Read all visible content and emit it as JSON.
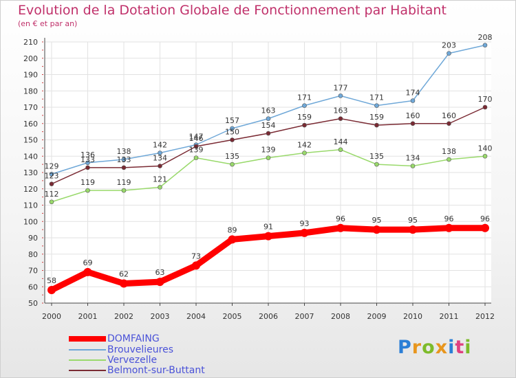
{
  "header": {
    "title": "Evolution de la Dotation Globale de Fonctionnement par Habitant",
    "subtitle": "(en € et par an)"
  },
  "logo": {
    "text": "Proxiti",
    "colors": [
      "#2b7fd6",
      "#e8961e",
      "#7dbb2a",
      "#e8961e",
      "#2b7fd6",
      "#e04080",
      "#7dbb2a"
    ]
  },
  "colors": {
    "grid": "#e2e2e2",
    "axis": "#444444",
    "tick_text": "#333333"
  },
  "chart_data": {
    "type": "line",
    "title": "Evolution de la Dotation Globale de Fonctionnement par Habitant",
    "subtitle": "(en € et par an)",
    "x": [
      "2000",
      "2001",
      "2002",
      "2003",
      "2004",
      "2005",
      "2006",
      "2007",
      "2008",
      "2009",
      "2010",
      "2011",
      "2012"
    ],
    "ylim": [
      50,
      210
    ],
    "yticks": [
      50,
      60,
      70,
      80,
      90,
      100,
      110,
      120,
      130,
      140,
      150,
      160,
      170,
      180,
      190,
      200,
      210
    ],
    "grid": true,
    "legend_position": "bottom-left",
    "series": [
      {
        "name": "DOMFAING",
        "color": "#ff0000",
        "values": [
          58,
          69,
          62,
          63,
          73,
          89,
          91,
          93,
          96,
          95,
          95,
          96,
          96
        ]
      },
      {
        "name": "Brouvelieures",
        "color": "#6fa8d8",
        "values": [
          129,
          136,
          138,
          142,
          147,
          157,
          163,
          171,
          177,
          171,
          174,
          203,
          208
        ]
      },
      {
        "name": "Vervezelle",
        "color": "#99d96b",
        "values": [
          112,
          119,
          119,
          121,
          139,
          135,
          139,
          142,
          144,
          135,
          134,
          138,
          140
        ]
      },
      {
        "name": "Belmont-sur-Buttant",
        "color": "#7a2a33",
        "values": [
          123,
          133,
          133,
          134,
          146,
          150,
          154,
          159,
          163,
          159,
          160,
          160,
          170
        ]
      }
    ]
  }
}
